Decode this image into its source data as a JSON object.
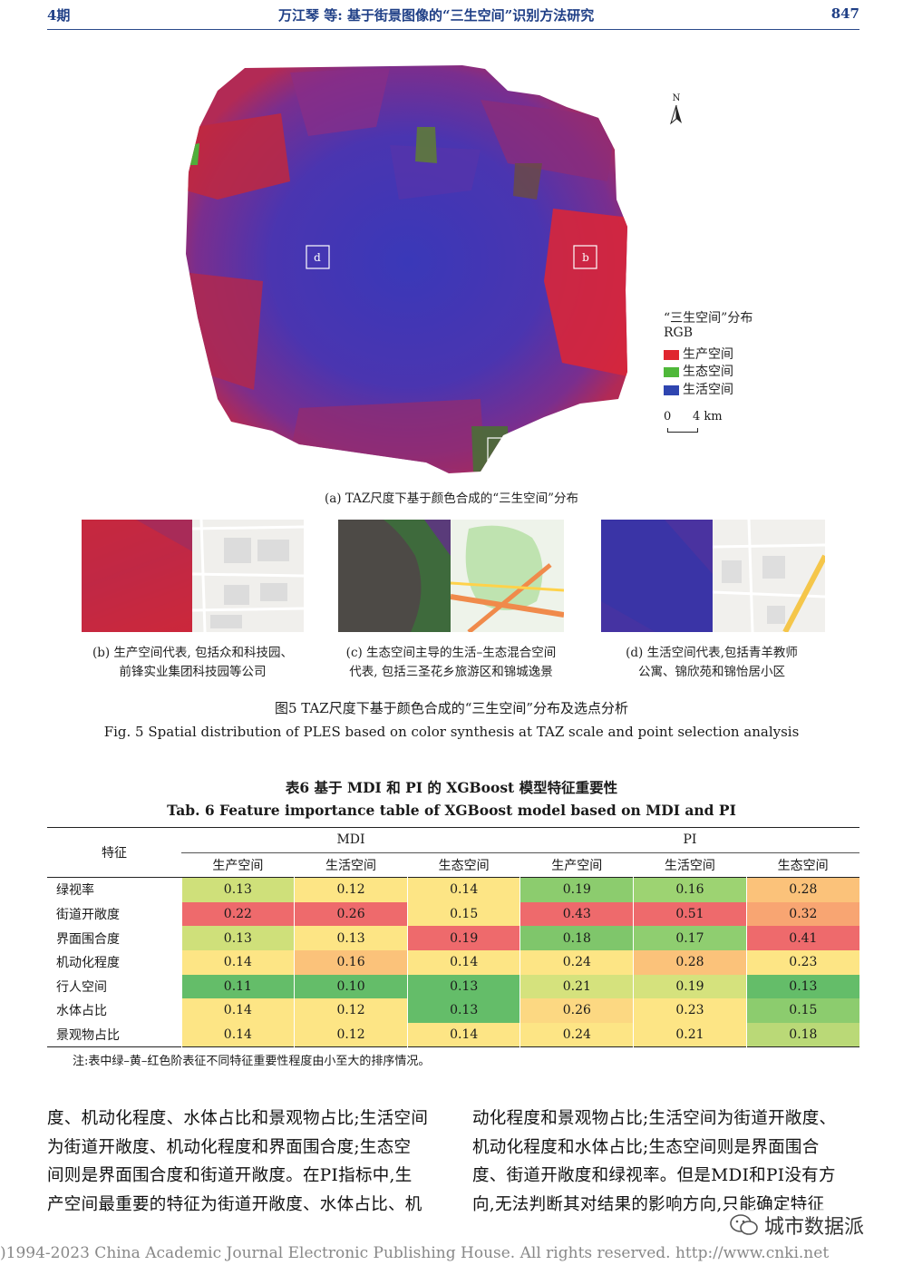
{
  "header": {
    "issue": "4期",
    "title": "万江琴 等: 基于街景图像的“三生空间”识别方法研究",
    "page": "847"
  },
  "map": {
    "north": "N",
    "legend_title": "“三生空间”分布",
    "legend_sub": "RGB",
    "legend_items": [
      {
        "label": "生产空间",
        "color": "#e0262f"
      },
      {
        "label": "生态空间",
        "color": "#4fb83a"
      },
      {
        "label": "生活空间",
        "color": "#2f45b0"
      }
    ],
    "scale_0": "0",
    "scale_4": "4 km",
    "markers": {
      "d": "d",
      "b": "b",
      "c": "c"
    },
    "caption_a": "(a) TAZ尺度下基于颜色合成的“三生空间”分布"
  },
  "panels": {
    "b_caption_1": "(b) 生产空间代表, 包括众和科技园、",
    "b_caption_2": "前锋实业集团科技园等公司",
    "c_caption_1": "(c)  生态空间主导的生活–生态混合空间",
    "c_caption_2": "代表, 包括三圣花乡旅游区和锦城逸景",
    "d_caption_1": "(d) 生活空间代表,包括青羊教师",
    "d_caption_2": "公寓、锦欣苑和锦怡居小区"
  },
  "figure": {
    "cn": "图5   TAZ尺度下基于颜色合成的“三生空间”分布及选点分析",
    "en": "Fig. 5   Spatial distribution of PLES based on color synthesis at TAZ scale and point selection analysis"
  },
  "table": {
    "cn": "表6   基于 MDI 和 PI 的 XGBoost 模型特征重要性",
    "en": "Tab. 6   Feature importance table of XGBoost model based on MDI and PI",
    "feature_header": "特征",
    "group_1": "MDI",
    "group_2": "PI",
    "sub_headers": [
      "生产空间",
      "生活空间",
      "生态空间",
      "生产空间",
      "生活空间",
      "生态空间"
    ],
    "rows": [
      {
        "label": "绿视率",
        "values": [
          "0.13",
          "0.12",
          "0.14",
          "0.19",
          "0.16",
          "0.28"
        ],
        "colors": [
          "#cfe07a",
          "#fde585",
          "#fde585",
          "#8ccc6e",
          "#9dd372",
          "#fbc27a"
        ]
      },
      {
        "label": "街道开敞度",
        "values": [
          "0.22",
          "0.26",
          "0.15",
          "0.43",
          "0.51",
          "0.32"
        ],
        "colors": [
          "#ee6a6c",
          "#ee6a6c",
          "#fde585",
          "#ee6a6c",
          "#ee6a6c",
          "#f8a572"
        ]
      },
      {
        "label": "界面围合度",
        "values": [
          "0.13",
          "0.13",
          "0.19",
          "0.18",
          "0.17",
          "0.41"
        ],
        "colors": [
          "#cfe07a",
          "#fde585",
          "#ee6a6c",
          "#7fc66b",
          "#8fce70",
          "#ee6a6c"
        ]
      },
      {
        "label": "机动化程度",
        "values": [
          "0.14",
          "0.16",
          "0.14",
          "0.24",
          "0.28",
          "0.23"
        ],
        "colors": [
          "#fde585",
          "#fbc27a",
          "#fde585",
          "#fde585",
          "#fbc27a",
          "#fde585"
        ]
      },
      {
        "label": "行人空间",
        "values": [
          "0.11",
          "0.10",
          "0.13",
          "0.21",
          "0.19",
          "0.13"
        ],
        "colors": [
          "#64bd69",
          "#64bd69",
          "#64bd69",
          "#d5e27d",
          "#d5e27d",
          "#64bd69"
        ]
      },
      {
        "label": "水体占比",
        "values": [
          "0.14",
          "0.12",
          "0.13",
          "0.26",
          "0.23",
          "0.15"
        ],
        "colors": [
          "#fde585",
          "#fde585",
          "#64bd69",
          "#fcd882",
          "#fde585",
          "#8ccc6e"
        ]
      },
      {
        "label": "景观物占比",
        "values": [
          "0.14",
          "0.12",
          "0.14",
          "0.24",
          "0.21",
          "0.18"
        ],
        "colors": [
          "#fde585",
          "#fde585",
          "#fde585",
          "#fde585",
          "#fde585",
          "#bad977"
        ]
      }
    ],
    "note": "注:表中绿–黄–红色阶表征不同特征重要性程度由小至大的排序情况。"
  },
  "body": {
    "left": [
      "度、机动化程度、水体占比和景观物占比;生活空间",
      "为街道开敞度、机动化程度和界面围合度;生态空",
      "间则是界面围合度和街道开敞度。在PI指标中,生",
      "产空间最重要的特征为街道开敞度、水体占比、机"
    ],
    "right": [
      "动化程度和景观物占比;生活空间为街道开敞度、",
      "机动化程度和水体占比;生态空间则是界面围合",
      "度、街道开敞度和绿视率。但是MDI和PI没有方",
      "向,无法判断其对结果的影响方向,只能确定特征"
    ]
  },
  "watermark": "城市数据派",
  "footer": ")1994-2023 China Academic Journal Electronic Publishing House. All rights reserved.    http://www.cnki.net"
}
